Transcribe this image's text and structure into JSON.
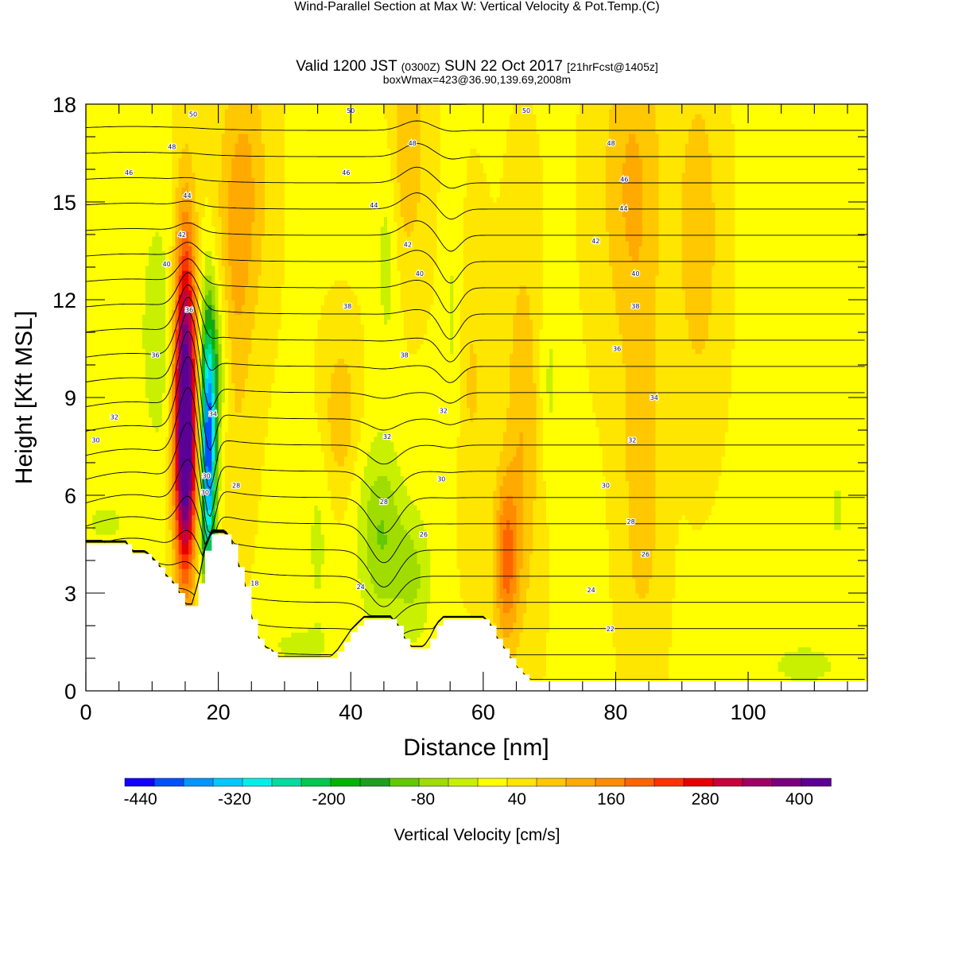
{
  "title": {
    "main": "Wind-Parallel Section at Max W: Vertical Velocity & Pot.Temp.",
    "copyright": "(C)",
    "valid_a": "Valid 1200 JST",
    "valid_b": "(0300Z)",
    "valid_c": "SUN 22 Oct 2017",
    "valid_d": "[21hrFcst@1405z]",
    "box": "boxWmax=423@36.90,139.69,2008m"
  },
  "chart_data": {
    "type": "heatmap",
    "xlabel": "Distance [nm]",
    "ylabel": "Height [Kft MSL]",
    "xlim": [
      0,
      118
    ],
    "ylim": [
      0,
      18
    ],
    "xticks": [
      "0",
      "20",
      "40",
      "60",
      "80",
      "100"
    ],
    "yticks": [
      "0",
      "3",
      "6",
      "9",
      "12",
      "15",
      "18"
    ],
    "colorbar": {
      "label": "Vertical Velocity [cm/s]",
      "tick_labels": [
        "-440",
        "-320",
        "-200",
        "-80",
        "40",
        "160",
        "280",
        "400"
      ],
      "tick_values": [
        -440,
        -320,
        -200,
        -80,
        40,
        160,
        280,
        400
      ],
      "range": [
        -460,
        440
      ],
      "colors": [
        "#1400ff",
        "#0050ff",
        "#0096ff",
        "#00c8ff",
        "#00f0e6",
        "#00dca0",
        "#00c850",
        "#00b400",
        "#1ea01e",
        "#64c800",
        "#a0dc00",
        "#c8f000",
        "#ffff00",
        "#ffe600",
        "#ffc800",
        "#ffaa00",
        "#ff8c00",
        "#ff6400",
        "#ff3200",
        "#e60000",
        "#c8003c",
        "#a00064",
        "#78007d",
        "#5a0096"
      ]
    },
    "terrain_kft": [
      [
        0,
        4.5
      ],
      [
        6,
        4.5
      ],
      [
        7,
        4.2
      ],
      [
        9,
        4.2
      ],
      [
        10,
        4.0
      ],
      [
        11,
        3.8
      ],
      [
        12,
        3.5
      ],
      [
        13,
        3.3
      ],
      [
        14,
        3.0
      ],
      [
        15,
        2.6
      ],
      [
        16,
        2.6
      ],
      [
        17,
        3.3
      ],
      [
        18,
        4.3
      ],
      [
        19,
        4.8
      ],
      [
        21,
        4.8
      ],
      [
        22,
        4.5
      ],
      [
        23,
        3.8
      ],
      [
        24,
        3.2
      ],
      [
        25,
        2.2
      ],
      [
        26,
        1.6
      ],
      [
        27,
        1.3
      ],
      [
        28,
        1.2
      ],
      [
        29,
        1.0
      ],
      [
        37,
        1.0
      ],
      [
        38,
        1.2
      ],
      [
        39,
        1.5
      ],
      [
        40,
        1.8
      ],
      [
        42,
        2.2
      ],
      [
        46,
        2.2
      ],
      [
        47,
        2.0
      ],
      [
        48,
        1.6
      ],
      [
        49,
        1.3
      ],
      [
        51,
        1.3
      ],
      [
        52,
        1.6
      ],
      [
        53,
        2.0
      ],
      [
        54,
        2.2
      ],
      [
        60,
        2.2
      ],
      [
        61,
        2.0
      ],
      [
        62,
        1.6
      ],
      [
        63,
        1.3
      ],
      [
        64,
        1.0
      ],
      [
        65,
        0.7
      ],
      [
        66,
        0.5
      ],
      [
        67,
        0.3
      ],
      [
        118,
        0.3
      ]
    ],
    "updrafts": [
      {
        "x": 15.0,
        "y": 9.0,
        "sx": 1.2,
        "sy": 3.6,
        "w": 430
      },
      {
        "x": 15.0,
        "y": 6.5,
        "sx": 1.0,
        "sy": 2.0,
        "w": 120
      },
      {
        "x": 22.0,
        "y": 12.0,
        "sx": 2.0,
        "sy": 4.0,
        "w": 70
      },
      {
        "x": 24.5,
        "y": 15.5,
        "sx": 2.2,
        "sy": 3.0,
        "w": 70
      },
      {
        "x": 38.5,
        "y": 8.5,
        "sx": 1.8,
        "sy": 1.6,
        "w": 70
      },
      {
        "x": 48.5,
        "y": 16.5,
        "sx": 2.0,
        "sy": 2.5,
        "w": 70
      },
      {
        "x": 63.5,
        "y": 4.0,
        "sx": 1.3,
        "sy": 1.8,
        "w": 160
      },
      {
        "x": 66.0,
        "y": 8.0,
        "sx": 1.8,
        "sy": 4.0,
        "w": 75
      },
      {
        "x": 82.5,
        "y": 15.5,
        "sx": 3.2,
        "sy": 3.5,
        "w": 85
      },
      {
        "x": 84.0,
        "y": 6.5,
        "sx": 2.0,
        "sy": 3.5,
        "w": 70
      },
      {
        "x": 92.5,
        "y": 14.0,
        "sx": 2.2,
        "sy": 3.5,
        "w": 70
      },
      {
        "x": 58.0,
        "y": 9.5,
        "sx": 2.0,
        "sy": 3.0,
        "w": 45
      }
    ],
    "downdrafts": [
      {
        "x": 18.5,
        "y": 7.2,
        "sx": 0.8,
        "sy": 2.8,
        "w": -420
      },
      {
        "x": 19.5,
        "y": 10.0,
        "sx": 1.5,
        "sy": 2.0,
        "w": -120
      },
      {
        "x": 11.0,
        "y": 11.0,
        "sx": 2.2,
        "sy": 3.0,
        "w": -60
      },
      {
        "x": 44.5,
        "y": 4.8,
        "sx": 2.4,
        "sy": 2.0,
        "w": -110
      },
      {
        "x": 49.5,
        "y": 3.5,
        "sx": 2.0,
        "sy": 1.5,
        "w": -75
      },
      {
        "x": 45.5,
        "y": 13.5,
        "sx": 1.2,
        "sy": 2.5,
        "w": -55
      },
      {
        "x": 55.5,
        "y": 11.0,
        "sx": 1.0,
        "sy": 3.0,
        "w": -55
      },
      {
        "x": 35.0,
        "y": 4.5,
        "sx": 1.2,
        "sy": 2.0,
        "w": -45
      },
      {
        "x": 70.0,
        "y": 9.5,
        "sx": 1.0,
        "sy": 2.0,
        "w": -45
      },
      {
        "x": 3.0,
        "y": 5.2,
        "sx": 3.0,
        "sy": 0.6,
        "w": -45
      },
      {
        "x": 113.5,
        "y": 5.5,
        "sx": 0.6,
        "sy": 0.8,
        "w": -50
      },
      {
        "x": 108.5,
        "y": 0.8,
        "sx": 5.5,
        "sy": 0.7,
        "w": -45
      },
      {
        "x": 32.0,
        "y": 1.4,
        "sx": 4.0,
        "sy": 0.5,
        "w": -45
      }
    ],
    "theta_contours": {
      "base": 300,
      "step": 2,
      "count": 23,
      "labels": [
        {
          "x": 1.5,
          "y": 7.7,
          "text": "30"
        },
        {
          "x": 4.3,
          "y": 8.4,
          "text": "32"
        },
        {
          "x": 10.5,
          "y": 10.3,
          "text": "36"
        },
        {
          "x": 12.2,
          "y": 13.1,
          "text": "40"
        },
        {
          "x": 14.5,
          "y": 14.0,
          "text": "42"
        },
        {
          "x": 15.3,
          "y": 15.2,
          "text": "44"
        },
        {
          "x": 6.5,
          "y": 15.9,
          "text": "46"
        },
        {
          "x": 13.0,
          "y": 16.7,
          "text": "48"
        },
        {
          "x": 16.2,
          "y": 17.7,
          "text": "50"
        },
        {
          "x": 15.6,
          "y": 11.7,
          "text": "36"
        },
        {
          "x": 19.2,
          "y": 8.5,
          "text": "34"
        },
        {
          "x": 18.2,
          "y": 6.6,
          "text": "30"
        },
        {
          "x": 18.0,
          "y": 6.1,
          "text": "30"
        },
        {
          "x": 22.7,
          "y": 6.3,
          "text": "28"
        },
        {
          "x": 25.5,
          "y": 3.3,
          "text": "18"
        },
        {
          "x": 39.5,
          "y": 11.8,
          "text": "38"
        },
        {
          "x": 48.1,
          "y": 10.3,
          "text": "38"
        },
        {
          "x": 45.5,
          "y": 7.8,
          "text": "32"
        },
        {
          "x": 54.0,
          "y": 8.6,
          "text": "32"
        },
        {
          "x": 53.7,
          "y": 6.5,
          "text": "30"
        },
        {
          "x": 45.0,
          "y": 5.8,
          "text": "28"
        },
        {
          "x": 51.0,
          "y": 4.8,
          "text": "26"
        },
        {
          "x": 41.5,
          "y": 3.2,
          "text": "24"
        },
        {
          "x": 40.0,
          "y": 17.8,
          "text": "50"
        },
        {
          "x": 49.3,
          "y": 16.8,
          "text": "48"
        },
        {
          "x": 39.3,
          "y": 15.9,
          "text": "46"
        },
        {
          "x": 43.5,
          "y": 14.9,
          "text": "44"
        },
        {
          "x": 48.6,
          "y": 13.7,
          "text": "42"
        },
        {
          "x": 50.4,
          "y": 12.8,
          "text": "40"
        },
        {
          "x": 66.5,
          "y": 17.8,
          "text": "50"
        },
        {
          "x": 79.3,
          "y": 16.8,
          "text": "48"
        },
        {
          "x": 81.3,
          "y": 15.7,
          "text": "46"
        },
        {
          "x": 81.2,
          "y": 14.8,
          "text": "44"
        },
        {
          "x": 77.0,
          "y": 13.8,
          "text": "42"
        },
        {
          "x": 83.0,
          "y": 12.8,
          "text": "40"
        },
        {
          "x": 83.0,
          "y": 11.8,
          "text": "38"
        },
        {
          "x": 80.2,
          "y": 10.5,
          "text": "36"
        },
        {
          "x": 85.8,
          "y": 9.0,
          "text": "34"
        },
        {
          "x": 82.5,
          "y": 7.7,
          "text": "32"
        },
        {
          "x": 78.5,
          "y": 6.3,
          "text": "30"
        },
        {
          "x": 82.3,
          "y": 5.2,
          "text": "28"
        },
        {
          "x": 84.5,
          "y": 4.2,
          "text": "26"
        },
        {
          "x": 76.3,
          "y": 3.1,
          "text": "24"
        },
        {
          "x": 79.2,
          "y": 1.9,
          "text": "22"
        }
      ]
    }
  }
}
